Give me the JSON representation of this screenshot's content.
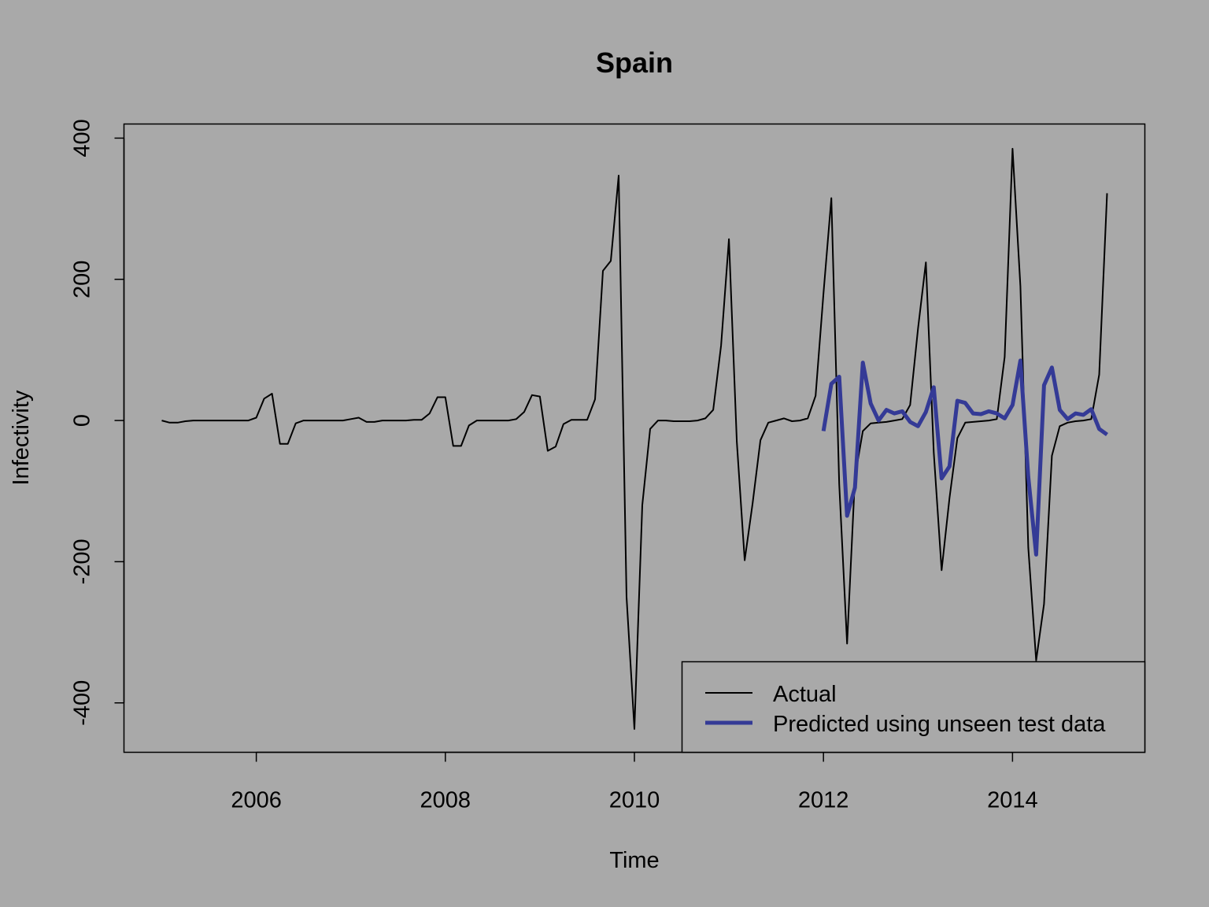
{
  "chart_data": {
    "type": "line",
    "title": "Spain",
    "xlabel": "Time",
    "ylabel": "Infectivity",
    "xlim": [
      2004.6,
      2015.4
    ],
    "ylim": [
      -470,
      420
    ],
    "x_ticks": [
      2006,
      2008,
      2010,
      2012,
      2014
    ],
    "y_ticks": [
      -400,
      -200,
      0,
      200,
      400
    ],
    "grid": false,
    "legend_position": "bottom-right",
    "x_start": 2005,
    "x_step": 0.0833333,
    "series": [
      {
        "name": "Actual",
        "color": "#000000",
        "values": [
          0,
          -3,
          -3,
          -1,
          0,
          0,
          0,
          0,
          0,
          0,
          0,
          0,
          4,
          31,
          38,
          -33,
          -33,
          -4,
          0,
          0,
          0,
          0,
          0,
          0,
          2,
          4,
          -2,
          -2,
          0,
          0,
          0,
          0,
          1,
          1,
          10,
          33,
          33,
          -36,
          -36,
          -7,
          0,
          0,
          0,
          0,
          0,
          2,
          12,
          36,
          34,
          -43,
          -37,
          -5,
          1,
          1,
          1,
          30,
          212,
          226,
          347,
          -250,
          -437,
          -120,
          -12,
          0,
          0,
          -1,
          -1,
          -1,
          0,
          3,
          15,
          106,
          257,
          -30,
          -198,
          -118,
          -28,
          -3,
          0,
          3,
          -1,
          0,
          3,
          35,
          180,
          315,
          -90,
          -316,
          -80,
          -15,
          -4,
          -3,
          -2,
          0,
          2,
          22,
          130,
          224,
          -45,
          -212,
          -110,
          -25,
          -3,
          -2,
          -1,
          0,
          2,
          90,
          385,
          190,
          -180,
          -340,
          -260,
          -50,
          -8,
          -3,
          -1,
          0,
          2,
          65,
          322
        ]
      },
      {
        "name": "Predicted using unseen test data",
        "color": "#343a96",
        "x_start": 2012,
        "values": [
          -15,
          52,
          62,
          -135,
          -95,
          82,
          24,
          0,
          15,
          10,
          13,
          -2,
          -8,
          12,
          47,
          -82,
          -65,
          28,
          25,
          10,
          9,
          13,
          10,
          3,
          22,
          85,
          -80,
          -190,
          50,
          75,
          15,
          2,
          10,
          8,
          16,
          -12,
          -20
        ]
      }
    ]
  }
}
